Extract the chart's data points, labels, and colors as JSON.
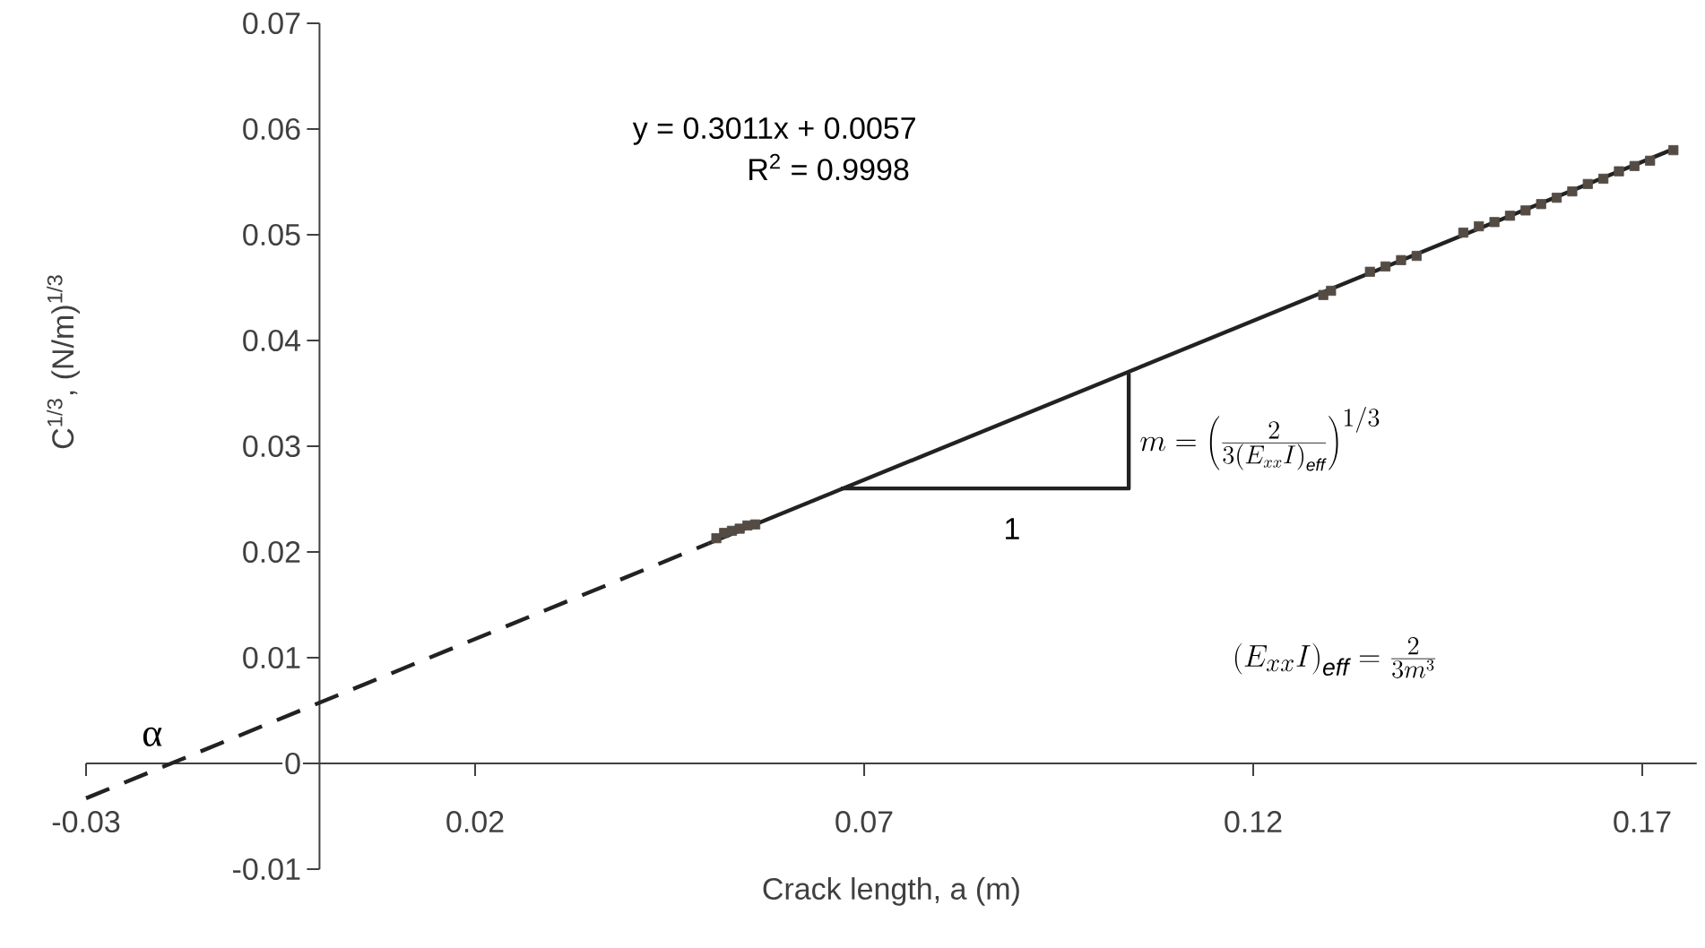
{
  "chart_data": {
    "type": "scatter",
    "xlabel": "Crack length, a (m)",
    "ylabel": "C$^{1/3}$, (N/m)$^{1/3}$",
    "xlim": [
      -0.03,
      0.177
    ],
    "ylim": [
      -0.01,
      0.07
    ],
    "xticks": [
      -0.03,
      0.02,
      0.07,
      0.12,
      0.17
    ],
    "yticks": [
      -0.01,
      0,
      0.01,
      0.02,
      0.03,
      0.04,
      0.05,
      0.06,
      0.07
    ],
    "series": [
      {
        "type": "scatter",
        "marker": "square",
        "color": "#544c44",
        "x": [
          0.051,
          0.052,
          0.053,
          0.054,
          0.055,
          0.056,
          0.129,
          0.13,
          0.135,
          0.137,
          0.139,
          0.141,
          0.147,
          0.149,
          0.151,
          0.153,
          0.155,
          0.157,
          0.159,
          0.161,
          0.163,
          0.165,
          0.167,
          0.169,
          0.171,
          0.174
        ],
        "values": [
          0.0213,
          0.0218,
          0.022,
          0.0222,
          0.0225,
          0.0226,
          0.0443,
          0.0447,
          0.0465,
          0.047,
          0.0476,
          0.048,
          0.0502,
          0.0508,
          0.0512,
          0.0518,
          0.0523,
          0.0529,
          0.0535,
          0.0541,
          0.0548,
          0.0553,
          0.056,
          0.0565,
          0.057,
          0.058
        ]
      },
      {
        "type": "line",
        "marker": "none",
        "line_style": "solid",
        "color": "#222222",
        "x": [
          0.05,
          0.174
        ],
        "values": [
          0.0208,
          0.0581
        ]
      },
      {
        "type": "line",
        "marker": "none",
        "line_style": "dashed",
        "color": "#222222",
        "x": [
          -0.03,
          0.05
        ],
        "values": [
          -0.0033,
          0.0208
        ]
      },
      {
        "type": "line",
        "marker": "none",
        "line_style": "solid",
        "color": "#222222",
        "x": [
          0.067,
          0.104,
          0.104
        ],
        "values": [
          0.026,
          0.026,
          0.0369
        ]
      }
    ],
    "annotations": [
      "y = 0.3011x + 0.0057",
      "R$^{2}$ = 0.9998",
      {
        "text": "α",
        "x": -0.0189,
        "y": 0
      },
      "1",
      "m = \\left(\\frac{2}{3\\left(E_{xx}I\\right)_{\\mathit{eff}}}\\right)^{1/3}",
      "\\left(E_{xx}I\\right)_{\\mathit{eff}} = \\frac{2}{3m^{3}}"
    ]
  }
}
